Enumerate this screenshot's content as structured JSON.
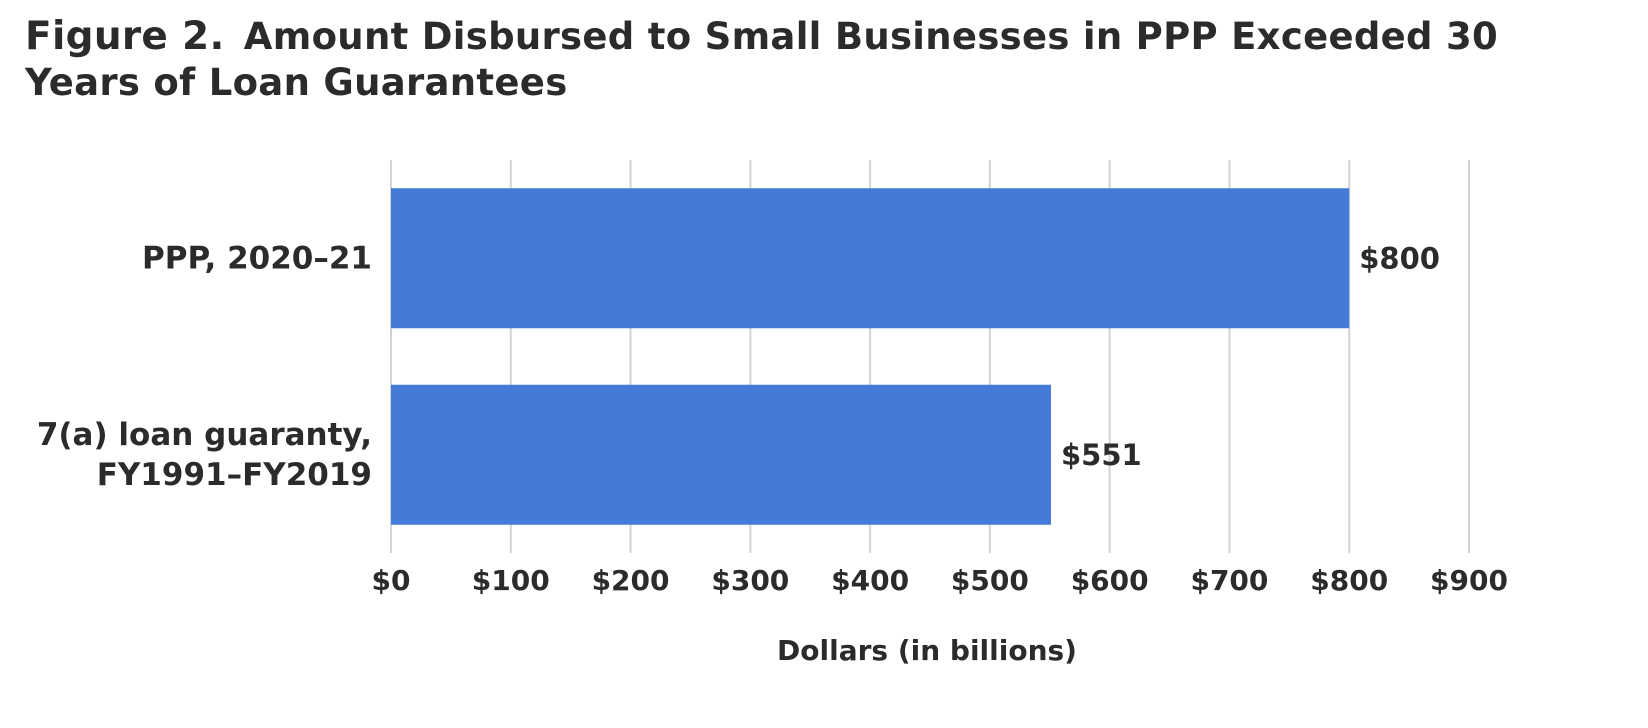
{
  "figure": {
    "label": "Figure 2.",
    "title": "Amount Disbursed to Small Businesses in PPP Exceeded 30 Years of Loan Guarantees"
  },
  "chart_data": {
    "type": "bar",
    "orientation": "horizontal",
    "categories": [
      [
        "PPP, 2020–21"
      ],
      [
        "7(a) loan guaranty,",
        "FY1991–FY2019"
      ]
    ],
    "values": [
      800,
      551
    ],
    "data_labels": [
      "$800",
      "$551"
    ],
    "xlabel": "Dollars (in billions)",
    "ylabel": "",
    "xlim": [
      0,
      900
    ],
    "x_ticks": [
      0,
      100,
      200,
      300,
      400,
      500,
      600,
      700,
      800,
      900
    ],
    "x_tick_labels": [
      "$0",
      "$100",
      "$200",
      "$300",
      "$400",
      "$500",
      "$600",
      "$700",
      "$800",
      "$900"
    ],
    "grid": "vertical",
    "legend": "none",
    "colors": {
      "bar": "#447bd9",
      "grid": "#d3d3d3",
      "text": "#2b2b2b"
    }
  }
}
